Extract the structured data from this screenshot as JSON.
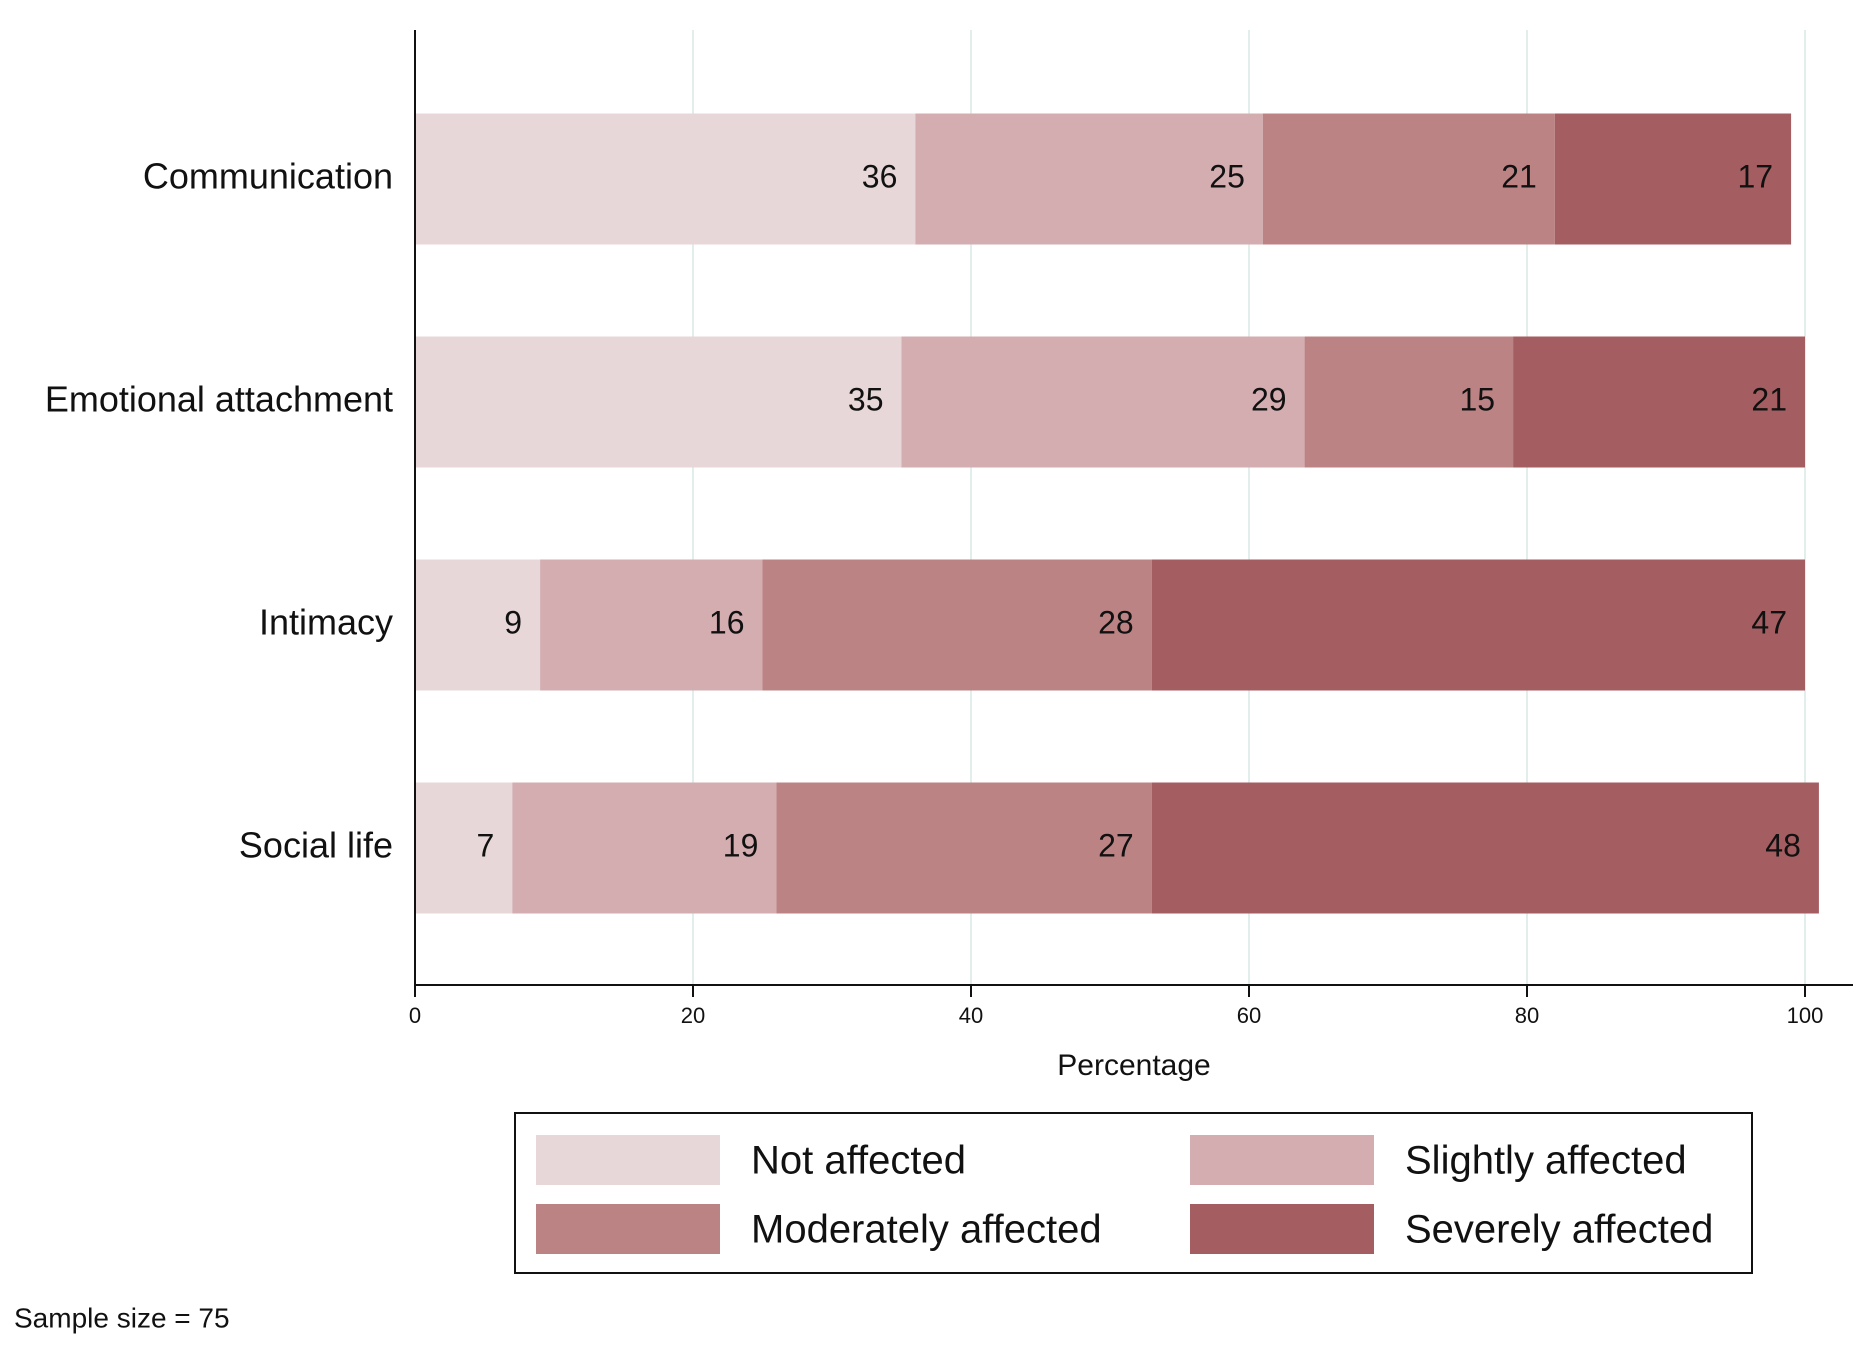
{
  "chart_data": {
    "type": "stacked_bar_horizontal",
    "categories": [
      "Communication",
      "Emotional attachment",
      "Intimacy",
      "Social life"
    ],
    "series": [
      {
        "name": "Not affected",
        "color": "#e8d7d8",
        "values": [
          36,
          35,
          9,
          7
        ]
      },
      {
        "name": "Slightly affected",
        "color": "#d3adb0",
        "values": [
          25,
          29,
          16,
          19
        ]
      },
      {
        "name": "Moderately affected",
        "color": "#bc8384",
        "values": [
          21,
          15,
          28,
          27
        ]
      },
      {
        "name": "Severely affected",
        "color": "#a45d60",
        "values": [
          17,
          21,
          47,
          48
        ]
      }
    ],
    "x_label": "Percentage",
    "xlim": [
      0,
      100
    ],
    "xticks": [
      0,
      20,
      40,
      60,
      80,
      100
    ],
    "grid": true,
    "legend": "bottom",
    "note": "Sample size = 75"
  }
}
